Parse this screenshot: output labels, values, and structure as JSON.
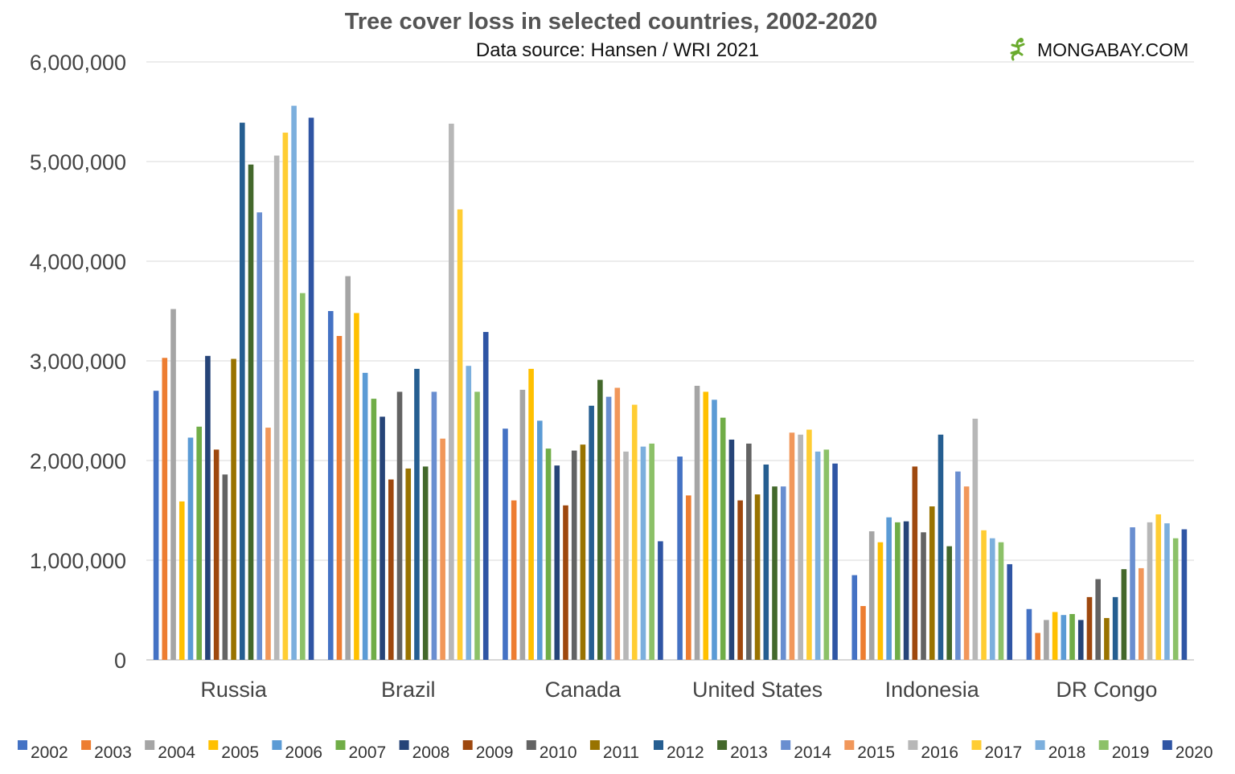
{
  "brand": {
    "text": "MONGABAY.COM",
    "icon": "gecko-logo-icon",
    "icon_color": "#6aab2e"
  },
  "chart_data": {
    "type": "bar",
    "title": "Tree cover loss in selected countries, 2002-2020",
    "subtitle": "Data source: Hansen / WRI 2021",
    "xlabel": "",
    "ylabel": "",
    "ylim": [
      0,
      6000000
    ],
    "yticks": [
      0,
      1000000,
      2000000,
      3000000,
      4000000,
      5000000,
      6000000
    ],
    "ytick_labels": [
      "0",
      "1,000,000",
      "2,000,000",
      "3,000,000",
      "4,000,000",
      "5,000,000",
      "6,000,000"
    ],
    "grid": true,
    "legend_position": "bottom",
    "categories": [
      "Russia",
      "Brazil",
      "Canada",
      "United States",
      "Indonesia",
      "DR Congo"
    ],
    "series": [
      {
        "name": "2002",
        "color": "#4472c4",
        "values": [
          2700000,
          3500000,
          2320000,
          2040000,
          850000,
          510000
        ]
      },
      {
        "name": "2003",
        "color": "#ed7d31",
        "values": [
          3030000,
          3250000,
          1600000,
          1650000,
          540000,
          270000
        ]
      },
      {
        "name": "2004",
        "color": "#a5a5a5",
        "values": [
          3520000,
          3850000,
          2710000,
          2750000,
          1290000,
          400000
        ]
      },
      {
        "name": "2005",
        "color": "#ffc000",
        "values": [
          1590000,
          3480000,
          2920000,
          2690000,
          1180000,
          480000
        ]
      },
      {
        "name": "2006",
        "color": "#5b9bd5",
        "values": [
          2230000,
          2880000,
          2400000,
          2610000,
          1430000,
          450000
        ]
      },
      {
        "name": "2007",
        "color": "#70ad47",
        "values": [
          2340000,
          2620000,
          2120000,
          2430000,
          1380000,
          460000
        ]
      },
      {
        "name": "2008",
        "color": "#264478",
        "values": [
          3050000,
          2440000,
          1950000,
          2210000,
          1390000,
          400000
        ]
      },
      {
        "name": "2009",
        "color": "#9e480e",
        "values": [
          2110000,
          1810000,
          1550000,
          1600000,
          1940000,
          630000
        ]
      },
      {
        "name": "2010",
        "color": "#636363",
        "values": [
          1860000,
          2690000,
          2100000,
          2170000,
          1280000,
          810000
        ]
      },
      {
        "name": "2011",
        "color": "#997300",
        "values": [
          3020000,
          1920000,
          2160000,
          1660000,
          1540000,
          420000
        ]
      },
      {
        "name": "2012",
        "color": "#255e91",
        "values": [
          5390000,
          2920000,
          2550000,
          1960000,
          2260000,
          630000
        ]
      },
      {
        "name": "2013",
        "color": "#43682b",
        "values": [
          4970000,
          1940000,
          2810000,
          1740000,
          1140000,
          910000
        ]
      },
      {
        "name": "2014",
        "color": "#698ed0",
        "values": [
          4490000,
          2690000,
          2640000,
          1740000,
          1890000,
          1330000
        ]
      },
      {
        "name": "2015",
        "color": "#f1975a",
        "values": [
          2330000,
          2220000,
          2730000,
          2280000,
          1740000,
          920000
        ]
      },
      {
        "name": "2016",
        "color": "#b7b7b7",
        "values": [
          5060000,
          5380000,
          2090000,
          2260000,
          2420000,
          1380000
        ]
      },
      {
        "name": "2017",
        "color": "#ffcd33",
        "values": [
          5290000,
          4520000,
          2560000,
          2310000,
          1300000,
          1460000
        ]
      },
      {
        "name": "2018",
        "color": "#7cafdd",
        "values": [
          5560000,
          2950000,
          2140000,
          2090000,
          1220000,
          1370000
        ]
      },
      {
        "name": "2019",
        "color": "#8cc168",
        "values": [
          3680000,
          2690000,
          2170000,
          2110000,
          1180000,
          1220000
        ]
      },
      {
        "name": "2020",
        "color": "#2f55a4",
        "values": [
          5440000,
          3290000,
          1190000,
          1970000,
          960000,
          1310000
        ]
      }
    ]
  }
}
